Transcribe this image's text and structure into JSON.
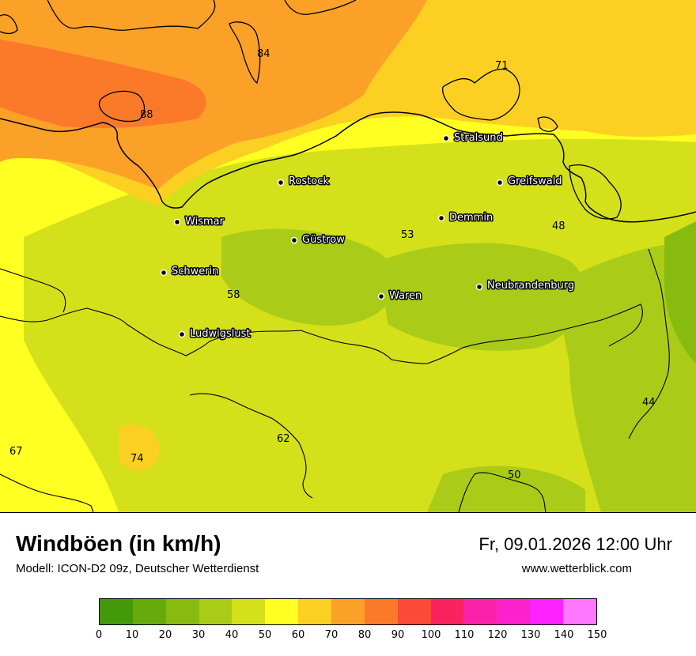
{
  "title": "Windböen (in km/h)",
  "subtitle": "Modell: ICON-D2 09z, Deutscher Wetterdienst",
  "datetime": "Fr, 09.01.2026 12:00 Uhr",
  "website": "www.wetterblick.com",
  "cities": [
    {
      "name": "Stralsund"
    },
    {
      "name": "Rostock"
    },
    {
      "name": "Greifswald"
    },
    {
      "name": "Wismar"
    },
    {
      "name": "Demmin"
    },
    {
      "name": "Güstrow"
    },
    {
      "name": "Schwerin"
    },
    {
      "name": "Neubrandenburg"
    },
    {
      "name": "Waren"
    },
    {
      "name": "Ludwigslust"
    }
  ],
  "values": [
    "84",
    "71",
    "88",
    "53",
    "48",
    "58",
    "44",
    "62",
    "67",
    "74",
    "50"
  ],
  "legend": {
    "colors": [
      "#44990a",
      "#66aa0c",
      "#88bb10",
      "#aacc18",
      "#d4e01a",
      "#ffff22",
      "#fcd022",
      "#fba128",
      "#fb7a2a",
      "#fb4a36",
      "#fb2260",
      "#fb22aa",
      "#fb22cc",
      "#fb22ff",
      "#ff77ff"
    ],
    "ticks": [
      "0",
      "10",
      "20",
      "30",
      "40",
      "50",
      "60",
      "70",
      "80",
      "90",
      "100",
      "110",
      "120",
      "130",
      "140",
      "150"
    ]
  }
}
